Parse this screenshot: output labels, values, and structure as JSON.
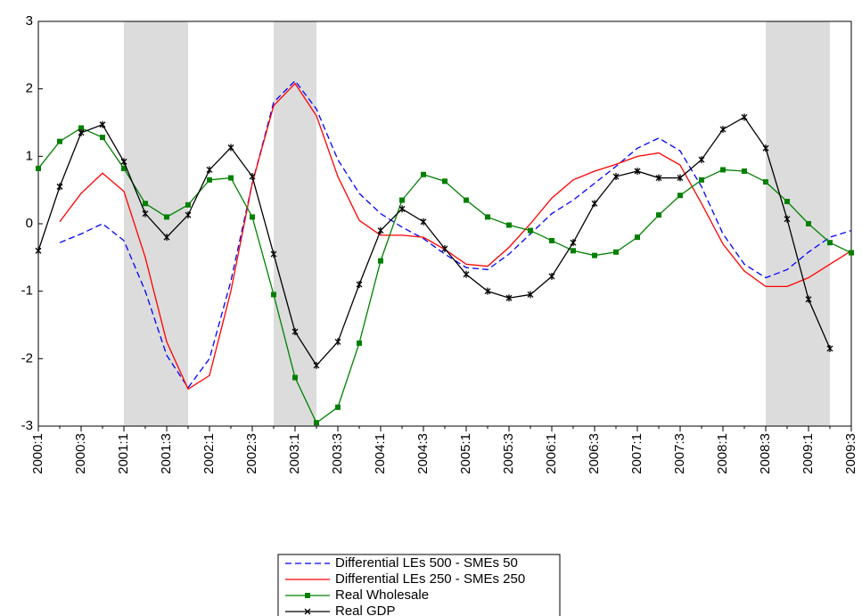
{
  "chart_data": {
    "type": "line",
    "categories": [
      "2000:1",
      null,
      "2000:3",
      null,
      "2001:1",
      null,
      "2001:3",
      null,
      "2002:1",
      null,
      "2002:3",
      null,
      "2003:1",
      null,
      "2003:3",
      null,
      "2004:1",
      null,
      "2004:3",
      null,
      "2005:1",
      null,
      "2005:3",
      null,
      "2006:1",
      null,
      "2006:3",
      null,
      "2007:1",
      null,
      "2007:3",
      null,
      "2008:1",
      null,
      "2008:3",
      null,
      "2009:1",
      null,
      "2009:3"
    ],
    "ylim": [
      -3,
      3
    ],
    "yticks": [
      -3,
      -2,
      -1,
      0,
      1,
      2,
      3
    ],
    "shaded_regions": [
      [
        4,
        7
      ],
      [
        11,
        13
      ],
      [
        34,
        37
      ]
    ],
    "series": [
      {
        "name": "Differential LEs 500 - SMEs 50",
        "color": "#0000ff",
        "dash": true,
        "marker": null,
        "values": [
          null,
          -0.28,
          -0.15,
          0.0,
          -0.25,
          -1.0,
          -1.95,
          -2.43,
          -2.0,
          -0.85,
          0.6,
          1.8,
          2.12,
          1.7,
          0.95,
          0.45,
          0.15,
          -0.05,
          -0.22,
          -0.45,
          -0.65,
          -0.68,
          -0.45,
          -0.15,
          0.15,
          0.35,
          0.6,
          0.85,
          1.12,
          1.27,
          1.08,
          0.55,
          -0.15,
          -0.6,
          -0.8,
          -0.68,
          -0.42,
          -0.2,
          -0.1
        ]
      },
      {
        "name": "Differential LEs 250 - SMEs 250",
        "color": "#ff0000",
        "dash": false,
        "marker": null,
        "values": [
          null,
          0.03,
          0.45,
          0.75,
          0.48,
          -0.5,
          -1.75,
          -2.45,
          -2.25,
          -1.0,
          0.6,
          1.75,
          2.08,
          1.6,
          0.7,
          0.05,
          -0.17,
          -0.17,
          -0.2,
          -0.38,
          -0.6,
          -0.63,
          -0.35,
          0.0,
          0.38,
          0.65,
          0.78,
          0.88,
          1.0,
          1.05,
          0.87,
          0.3,
          -0.3,
          -0.7,
          -0.93,
          -0.93,
          -0.8,
          -0.6,
          -0.4
        ]
      },
      {
        "name": "Real Wholesale",
        "color": "#008000",
        "dash": false,
        "marker": "square",
        "values": [
          0.82,
          1.22,
          1.42,
          1.28,
          0.82,
          0.3,
          0.1,
          0.28,
          0.65,
          0.68,
          0.1,
          -1.05,
          -2.28,
          -2.95,
          -2.72,
          -1.77,
          -0.55,
          0.35,
          0.73,
          0.63,
          0.35,
          0.1,
          -0.02,
          -0.1,
          -0.25,
          -0.4,
          -0.47,
          -0.42,
          -0.2,
          0.13,
          0.42,
          0.65,
          0.8,
          0.78,
          0.62,
          0.33,
          0.0,
          -0.28,
          -0.43
        ]
      },
      {
        "name": "Real GDP",
        "color": "#000000",
        "dash": false,
        "marker": "star",
        "values": [
          -0.4,
          0.55,
          1.35,
          1.47,
          0.92,
          0.15,
          -0.2,
          0.13,
          0.8,
          1.13,
          0.7,
          -0.45,
          -1.6,
          -2.1,
          -1.75,
          -0.9,
          -0.1,
          0.22,
          0.03,
          -0.37,
          -0.75,
          -1.0,
          -1.1,
          -1.05,
          -0.78,
          -0.28,
          0.3,
          0.7,
          0.78,
          0.68,
          0.68,
          0.95,
          1.4,
          1.58,
          1.12,
          0.07,
          -1.12,
          -1.85,
          null
        ]
      }
    ]
  }
}
